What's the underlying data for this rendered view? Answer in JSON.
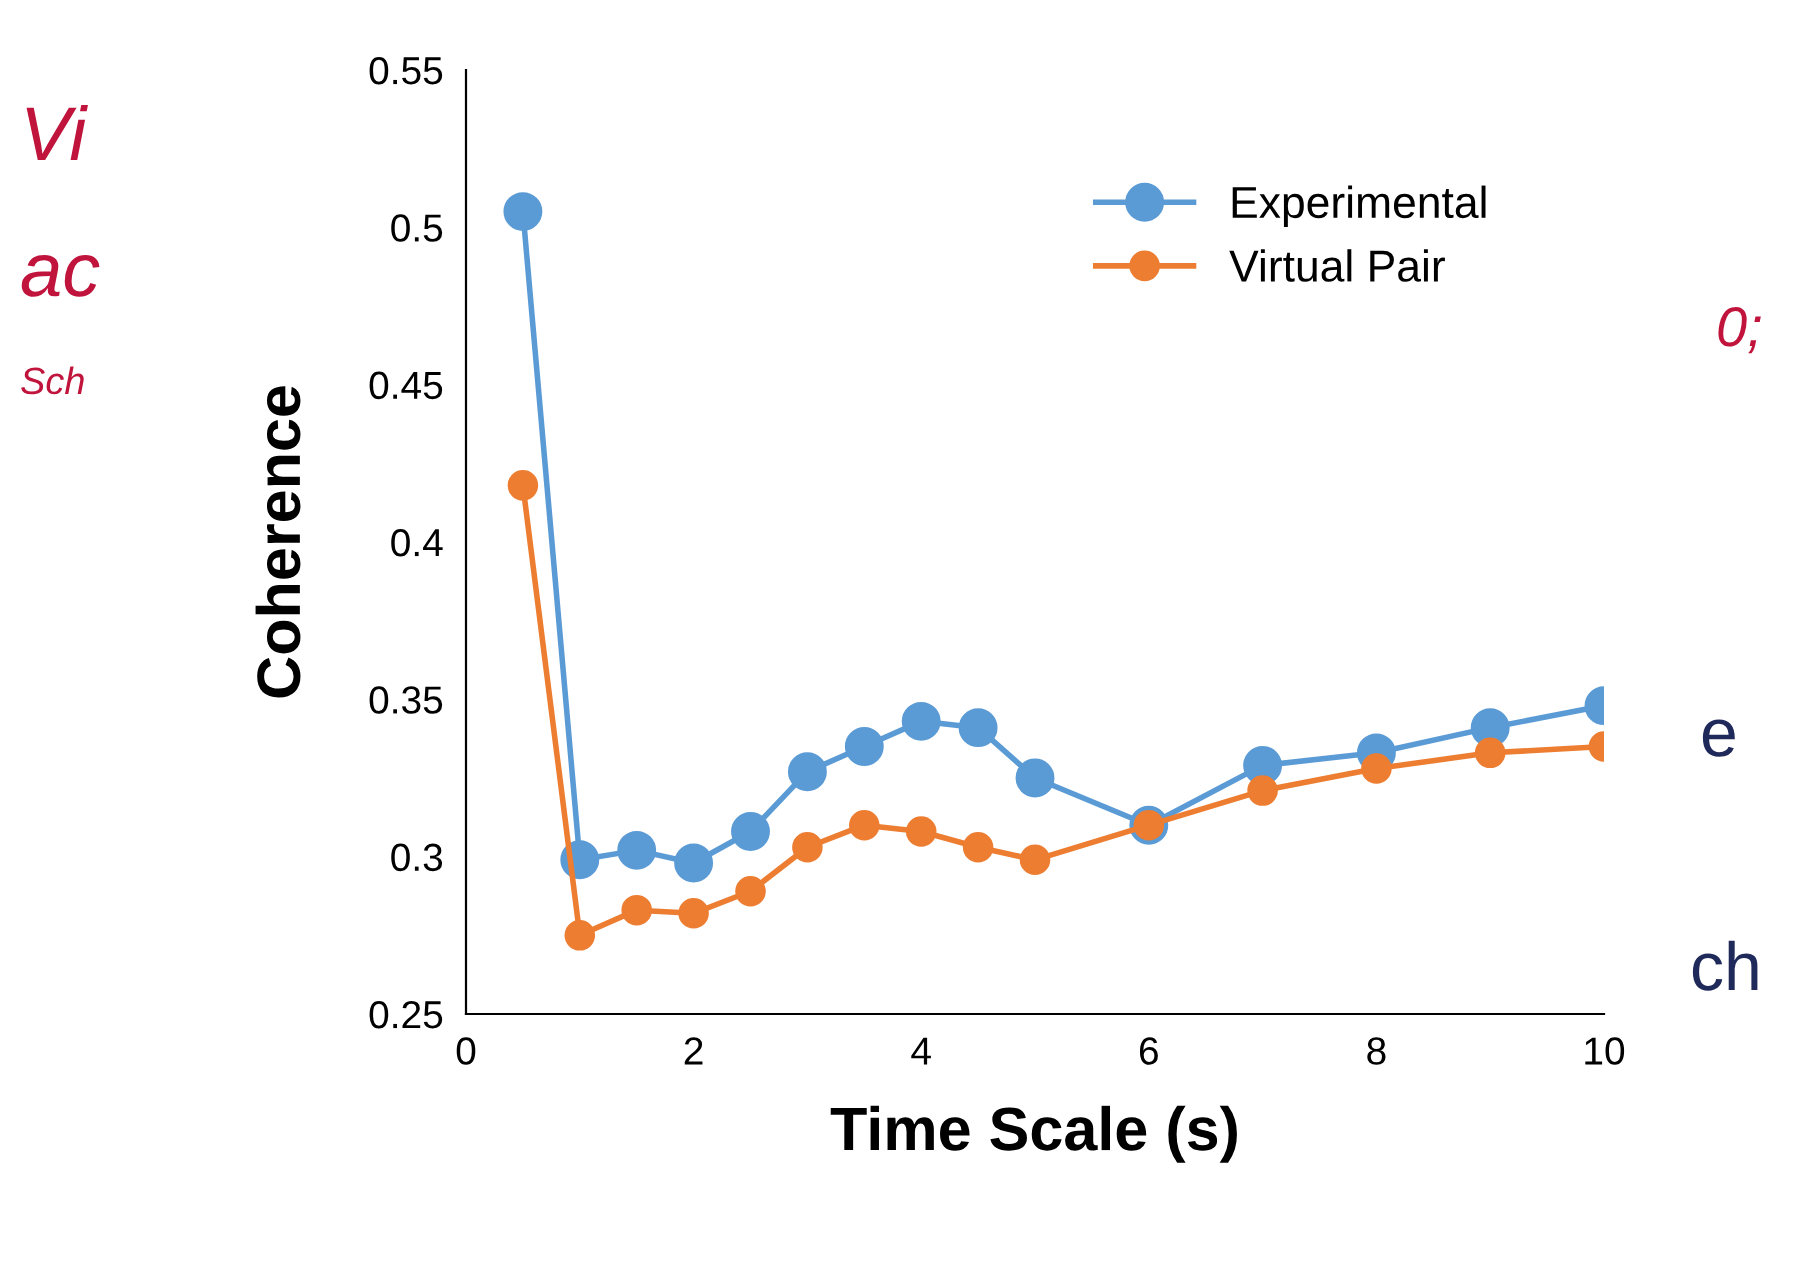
{
  "chart_data": {
    "type": "line",
    "xlabel": "Time Scale (s)",
    "ylabel": "Coherence",
    "x": [
      0.5,
      1,
      1.5,
      2,
      2.5,
      3,
      3.5,
      4,
      4.5,
      5,
      6,
      7,
      8,
      9,
      10
    ],
    "series": [
      {
        "name": "Experimental",
        "color": "#5b9bd5",
        "values": [
          0.505,
          0.299,
          0.302,
          0.298,
          0.308,
          0.327,
          0.335,
          0.343,
          0.341,
          0.325,
          0.31,
          0.329,
          0.333,
          0.341,
          0.348
        ]
      },
      {
        "name": "Virtual Pair",
        "color": "#ed7d31",
        "values": [
          0.418,
          0.275,
          0.283,
          0.282,
          0.289,
          0.303,
          0.31,
          0.308,
          0.303,
          0.299,
          0.31,
          0.321,
          0.328,
          0.333,
          0.335
        ]
      }
    ],
    "xlim": [
      0,
      10
    ],
    "xticks": [
      0,
      2,
      4,
      6,
      8,
      10
    ],
    "ylim": [
      0.25,
      0.55
    ],
    "yticks": [
      0.25,
      0.3,
      0.35,
      0.4,
      0.45,
      0.5,
      0.55
    ],
    "grid": false,
    "legend": "top right",
    "marker": "circle",
    "line_style": "solid",
    "annotations": [
      "Vi",
      "ac",
      "Sch",
      "0;",
      "e",
      "ch"
    ]
  }
}
